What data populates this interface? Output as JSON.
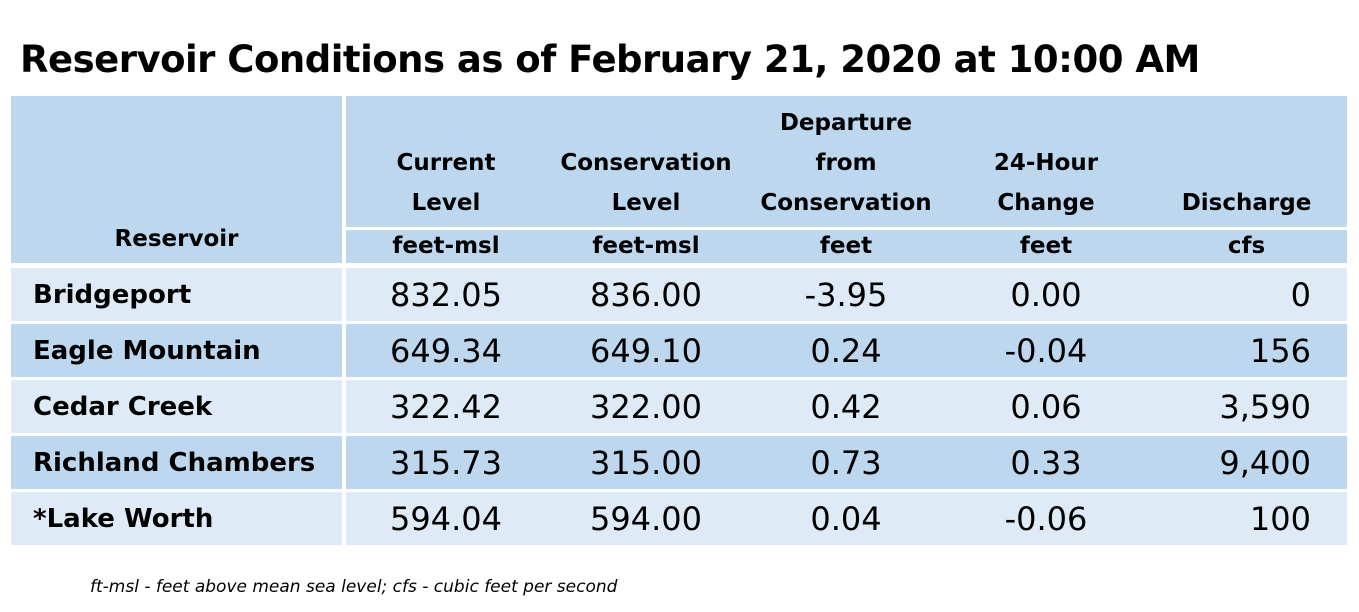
{
  "title": "Reservoir Conditions as of February 21, 2020 at 10:00 AM",
  "chart_data": {
    "type": "table",
    "title": "Reservoir Conditions as of February 21, 2020 at 10:00 AM",
    "columns": [
      {
        "name": "Reservoir",
        "lines": [
          "Reservoir"
        ],
        "unit": ""
      },
      {
        "name": "Current Level",
        "lines": [
          "Current",
          "Level"
        ],
        "unit": "feet-msl"
      },
      {
        "name": "Conservation Level",
        "lines": [
          "Conservation",
          "Level"
        ],
        "unit": "feet-msl"
      },
      {
        "name": "Departure from Conservation",
        "lines": [
          "Departure",
          "from",
          "Conservation"
        ],
        "unit": "feet"
      },
      {
        "name": "24-Hour Change",
        "lines": [
          "24-Hour",
          "Change"
        ],
        "unit": "feet"
      },
      {
        "name": "Discharge",
        "lines": [
          "Discharge"
        ],
        "unit": "cfs"
      }
    ],
    "rows": [
      {
        "reservoir": "Bridgeport",
        "current_level": "832.05",
        "conservation_level": "836.00",
        "departure": "-3.95",
        "change_24h": "0.00",
        "discharge": "0"
      },
      {
        "reservoir": "Eagle Mountain",
        "current_level": "649.34",
        "conservation_level": "649.10",
        "departure": "0.24",
        "change_24h": "-0.04",
        "discharge": "156"
      },
      {
        "reservoir": "Cedar Creek",
        "current_level": "322.42",
        "conservation_level": "322.00",
        "departure": "0.42",
        "change_24h": "0.06",
        "discharge": "3,590"
      },
      {
        "reservoir": "Richland Chambers",
        "current_level": "315.73",
        "conservation_level": "315.00",
        "departure": "0.73",
        "change_24h": "0.33",
        "discharge": "9,400"
      },
      {
        "reservoir": "*Lake Worth",
        "current_level": "594.04",
        "conservation_level": "594.00",
        "departure": "0.04",
        "change_24h": "-0.06",
        "discharge": "100"
      }
    ]
  },
  "footnote": "ft-msl - feet above mean sea level; cfs - cubic feet per second",
  "colors": {
    "header_bg": "#bdd7ee",
    "row_light": "#deebf7",
    "row_dark": "#bdd7ee",
    "grid_lines": "#ffffff"
  }
}
